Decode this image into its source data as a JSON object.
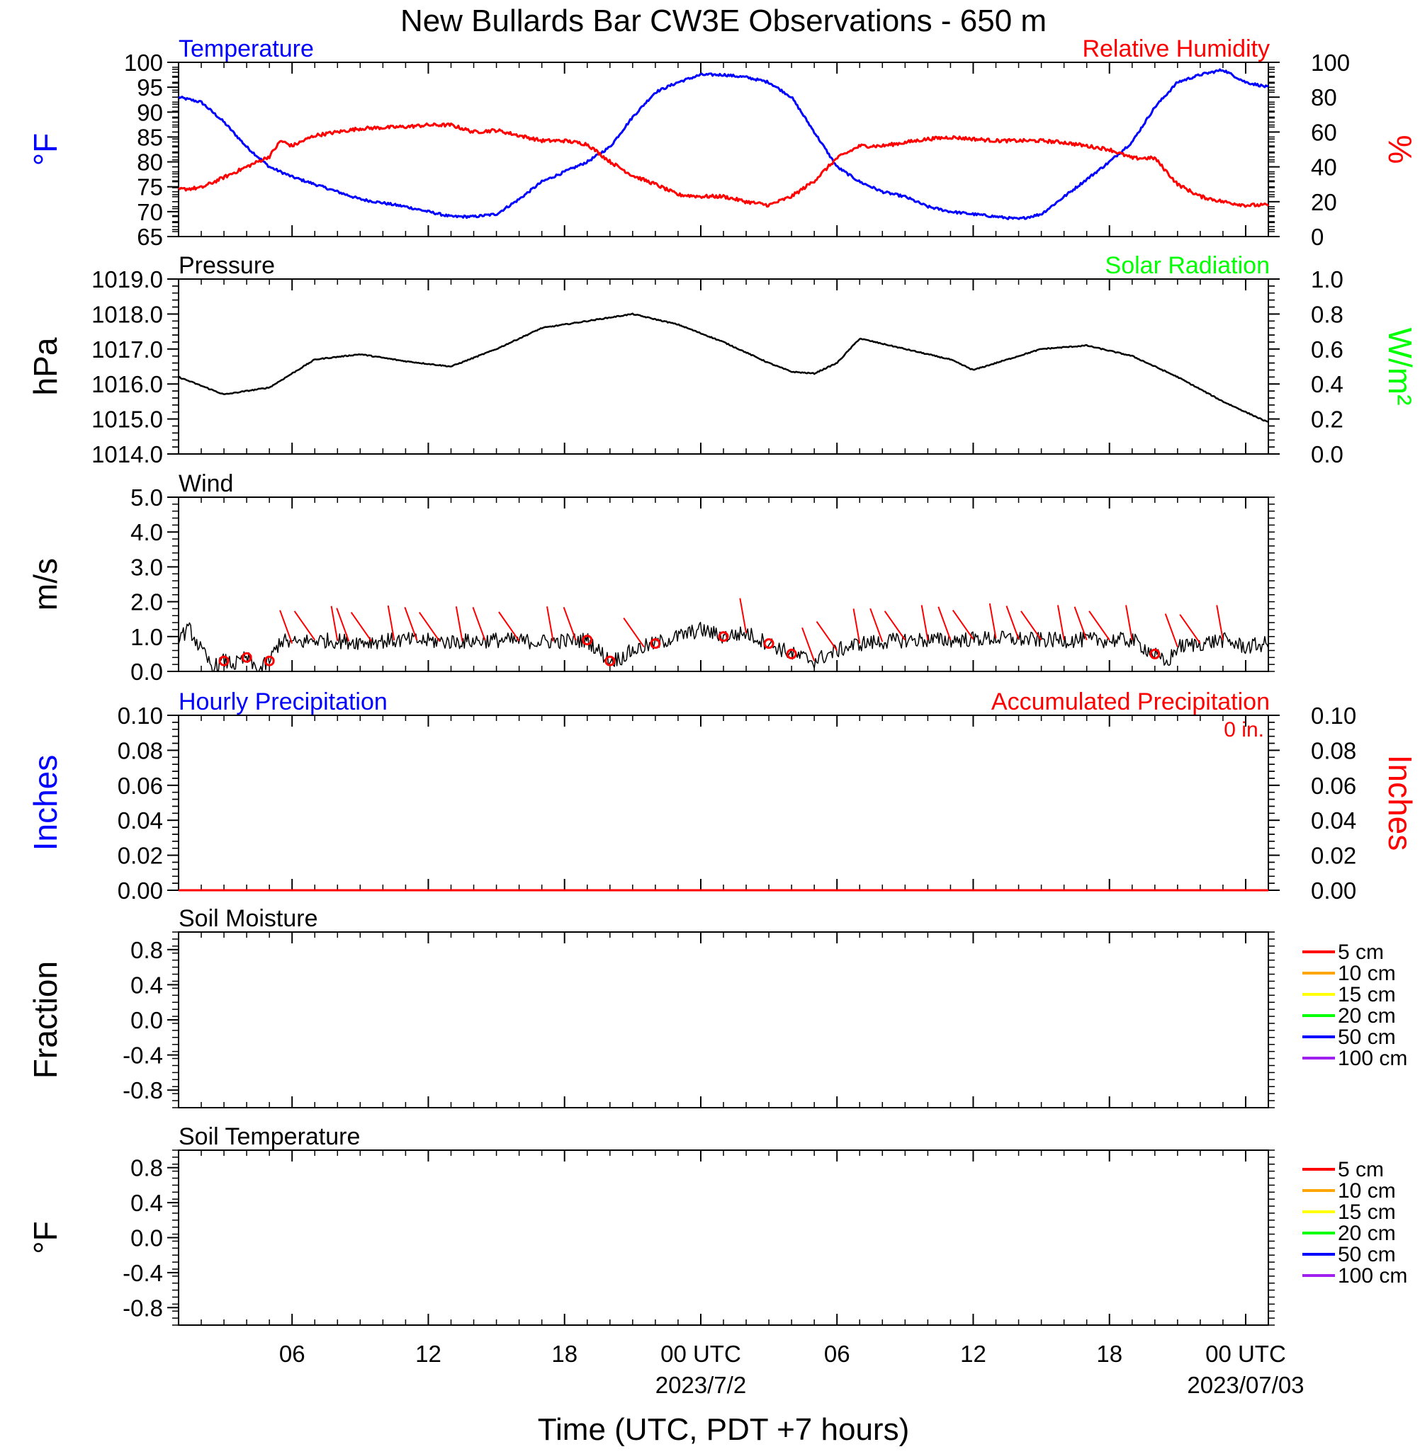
{
  "figure": {
    "title": "New Bullards Bar CW3E Observations - 650 m",
    "xlabel": "Time (UTC, PDT +7 hours)",
    "x_ticks": [
      {
        "label": "06",
        "date": ""
      },
      {
        "label": "12",
        "date": ""
      },
      {
        "label": "18",
        "date": ""
      },
      {
        "label": "00 UTC",
        "date": "2023/7/2"
      },
      {
        "label": "06",
        "date": ""
      },
      {
        "label": "12",
        "date": ""
      },
      {
        "label": "18",
        "date": ""
      },
      {
        "label": "00 UTC",
        "date": "2023/07/03"
      }
    ],
    "colors": {
      "temperature": "#0000ff",
      "humidity": "#ff0000",
      "solar": "#00ff00",
      "black": "#000000"
    },
    "accumulated_note": "0 in."
  },
  "chart_data": [
    {
      "type": "line",
      "panel": "temperature-humidity",
      "title_left": "Temperature",
      "title_right": "Relative Humidity",
      "ylabel_left": "°F",
      "ylabel_right": "%",
      "ylim_left": [
        65,
        100
      ],
      "ylim_right": [
        0,
        100
      ],
      "yticks_left": [
        65,
        70,
        75,
        80,
        85,
        90,
        95,
        100
      ],
      "yticks_right": [
        0,
        20,
        40,
        60,
        80,
        100
      ],
      "x_unit": "hours since 2023-07-01 01 UTC",
      "xlim": [
        0,
        48
      ],
      "series": [
        {
          "name": "Temperature",
          "axis": "left",
          "color": "#0000ff",
          "x": [
            0,
            1,
            2,
            3,
            4,
            5,
            6,
            8,
            10,
            12,
            13,
            14,
            15,
            16,
            17,
            18,
            19,
            20,
            21,
            22,
            23,
            24,
            25,
            26,
            27,
            28,
            29,
            30,
            31,
            32,
            33,
            34,
            35,
            36,
            37,
            38,
            39,
            40,
            41,
            42,
            43,
            44,
            45,
            46,
            47,
            48
          ],
          "y": [
            93,
            92,
            88,
            83,
            79,
            77,
            75.5,
            72.5,
            71,
            69,
            69,
            69.5,
            72.5,
            76,
            78,
            80,
            83,
            89,
            94,
            96,
            97.5,
            97.5,
            97,
            96,
            93,
            86,
            79,
            76,
            74,
            73,
            71,
            70,
            69.5,
            69,
            68.5,
            69.5,
            73,
            76.5,
            80,
            84,
            91,
            96,
            97.5,
            98.5,
            96,
            95
          ]
        },
        {
          "name": "Relative Humidity",
          "axis": "right",
          "color": "#ff0000",
          "x": [
            0,
            1,
            2,
            3,
            4,
            4.5,
            5,
            6,
            8,
            10,
            11,
            12,
            13,
            14,
            15,
            16,
            17,
            18,
            19,
            20,
            21,
            22,
            23,
            24,
            25,
            26,
            27,
            28,
            29,
            30,
            31,
            32,
            33,
            34,
            35,
            36,
            37,
            38,
            39,
            40,
            41,
            42,
            43,
            44,
            45,
            46,
            47,
            48
          ],
          "y": [
            27,
            28,
            34,
            40,
            46,
            55,
            52,
            58,
            62,
            63,
            64,
            64,
            60,
            61,
            58,
            55,
            55,
            53,
            43,
            35,
            30,
            24,
            23,
            23,
            20,
            18,
            23,
            32,
            45,
            52,
            52,
            54,
            56,
            57,
            56,
            55,
            55,
            55,
            54,
            52,
            50,
            45,
            45,
            30,
            23,
            20,
            18,
            18
          ]
        }
      ]
    },
    {
      "type": "line",
      "panel": "pressure-solar",
      "title_left": "Pressure",
      "title_right": "Solar Radiation",
      "ylabel_left": "hPa",
      "ylabel_right": "W/m²",
      "ylim_left": [
        1014.0,
        1019.0
      ],
      "ylim_right": [
        0.0,
        1.0
      ],
      "yticks_left": [
        "1014.0",
        "1015.0",
        "1016.0",
        "1017.0",
        "1018.0",
        "1019.0"
      ],
      "yticks_right": [
        "0.0",
        "0.2",
        "0.4",
        "0.6",
        "0.8",
        "1.0"
      ],
      "series": [
        {
          "name": "Pressure",
          "axis": "left",
          "color": "#000000",
          "x": [
            0,
            2,
            4,
            6,
            8,
            10,
            12,
            14,
            16,
            18,
            20,
            22,
            24,
            26,
            27,
            28,
            29,
            30,
            32,
            34,
            35,
            36,
            38,
            40,
            42,
            44,
            46,
            48
          ],
          "y": [
            1016.2,
            1015.7,
            1015.9,
            1016.7,
            1016.85,
            1016.65,
            1016.5,
            1017.0,
            1017.6,
            1017.8,
            1018.0,
            1017.7,
            1017.2,
            1016.6,
            1016.35,
            1016.3,
            1016.6,
            1017.3,
            1017.0,
            1016.7,
            1016.4,
            1016.6,
            1017.0,
            1017.1,
            1016.8,
            1016.2,
            1015.5,
            1014.9
          ]
        }
      ]
    },
    {
      "type": "line",
      "panel": "wind",
      "title_left": "Wind",
      "ylabel_left": "m/s",
      "ylim_left": [
        0.0,
        5.0
      ],
      "yticks_left": [
        "0.0",
        "1.0",
        "2.0",
        "3.0",
        "4.0",
        "5.0"
      ],
      "series": [
        {
          "name": "Wind speed",
          "axis": "left",
          "color": "#000000",
          "x": [
            0,
            0.5,
            1,
            1.5,
            2,
            2.5,
            3,
            3.5,
            4,
            4.5,
            5,
            6,
            8,
            10,
            12,
            14,
            16,
            18,
            18.5,
            19,
            19.5,
            20,
            21,
            22,
            23,
            24,
            25,
            26,
            27,
            28,
            29,
            30,
            32,
            34,
            36,
            38,
            40,
            42,
            43,
            43.5,
            44,
            45,
            46,
            47,
            48
          ],
          "y": [
            1.0,
            1.2,
            0.6,
            0.1,
            0.3,
            0.2,
            0.4,
            0.0,
            0.3,
            0.9,
            0.8,
            0.9,
            0.85,
            0.9,
            0.85,
            0.9,
            0.85,
            0.9,
            0.6,
            0.3,
            0.4,
            0.6,
            0.8,
            1.0,
            1.2,
            1.0,
            1.1,
            0.8,
            0.5,
            0.3,
            0.6,
            0.8,
            0.9,
            0.9,
            0.95,
            0.9,
            0.9,
            0.9,
            0.5,
            0.2,
            0.7,
            0.8,
            0.9,
            0.7,
            0.8
          ]
        }
      ],
      "calm_circles_hours": [
        2,
        3,
        4,
        18,
        19,
        21,
        24,
        26,
        27,
        43
      ],
      "barb_hours": [
        5,
        6,
        7,
        7.5,
        8.5,
        9.5,
        10.5,
        11.5,
        12.5,
        13.5,
        15,
        16.5,
        17.5,
        20.5,
        25,
        28,
        29,
        30,
        31,
        32,
        33,
        34,
        35,
        36,
        37,
        38,
        39,
        40,
        41,
        42,
        44,
        45,
        46
      ]
    },
    {
      "type": "line",
      "panel": "precipitation",
      "title_left": "Hourly Precipitation",
      "title_right": "Accumulated Precipitation",
      "ylabel_left": "Inches",
      "ylabel_right": "Inches",
      "ylim_left": [
        0.0,
        0.1
      ],
      "ylim_right": [
        0.0,
        0.1
      ],
      "yticks_left": [
        "0.00",
        "0.02",
        "0.04",
        "0.06",
        "0.08",
        "0.10"
      ],
      "yticks_right": [
        "0.00",
        "0.02",
        "0.04",
        "0.06",
        "0.08",
        "0.10"
      ],
      "series": [
        {
          "name": "Accumulated Precipitation",
          "axis": "right",
          "color": "#ff0000",
          "x": [
            0,
            48
          ],
          "y": [
            0,
            0
          ]
        }
      ]
    },
    {
      "type": "line",
      "panel": "soil-moisture",
      "title_left": "Soil Moisture",
      "ylabel_left": "Fraction",
      "ylim_left": [
        -1.0,
        1.0
      ],
      "yticks_left": [
        "-0.8",
        "-0.4",
        "0.0",
        "0.4",
        "0.8"
      ],
      "legend": [
        {
          "label": "5 cm",
          "color": "#ff0000"
        },
        {
          "label": "10 cm",
          "color": "#ffa500"
        },
        {
          "label": "15 cm",
          "color": "#ffff00"
        },
        {
          "label": "20 cm",
          "color": "#00ff00"
        },
        {
          "label": "50 cm",
          "color": "#0000ff"
        },
        {
          "label": "100 cm",
          "color": "#a020f0"
        }
      ],
      "series": []
    },
    {
      "type": "line",
      "panel": "soil-temperature",
      "title_left": "Soil Temperature",
      "ylabel_left": "°F",
      "ylim_left": [
        -1.0,
        1.0
      ],
      "yticks_left": [
        "-0.8",
        "-0.4",
        "0.0",
        "0.4",
        "0.8"
      ],
      "legend": [
        {
          "label": "5 cm",
          "color": "#ff0000"
        },
        {
          "label": "10 cm",
          "color": "#ffa500"
        },
        {
          "label": "15 cm",
          "color": "#ffff00"
        },
        {
          "label": "20 cm",
          "color": "#00ff00"
        },
        {
          "label": "50 cm",
          "color": "#0000ff"
        },
        {
          "label": "100 cm",
          "color": "#a020f0"
        }
      ],
      "series": []
    }
  ]
}
